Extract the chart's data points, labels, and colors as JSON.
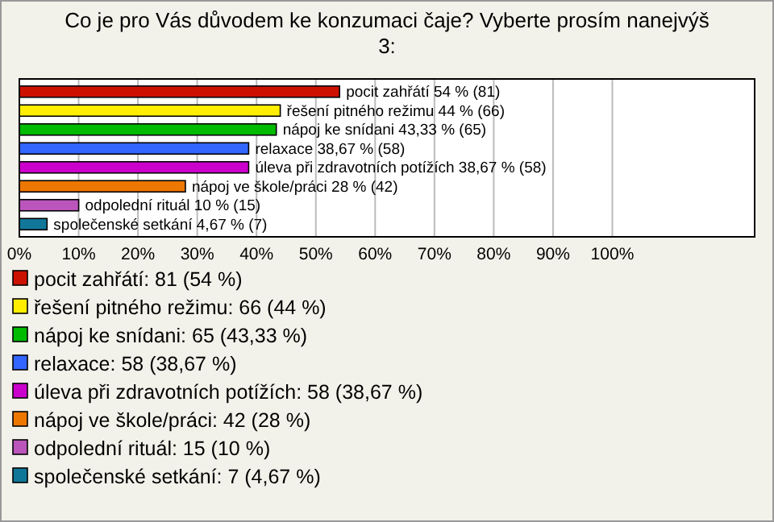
{
  "chart_data": {
    "type": "bar",
    "orientation": "horizontal",
    "title": "Co je pro Vás důvodem ke konzumaci čaje? Vyberte prosím nanejvýš 3:",
    "categories": [
      null,
      null,
      null,
      null,
      null,
      null,
      null,
      null
    ],
    "series": [
      {
        "name": "pocit zahřátí: 81 (54 %)",
        "color": "#cc1100",
        "values": [
          54,
          null,
          null,
          null,
          null,
          null,
          null,
          null
        ],
        "value_labels": [
          "pocit zahřátí 54 % (81)",
          null,
          null,
          null,
          null,
          null,
          null,
          null
        ]
      },
      {
        "name": "řešení pitného režimu: 66 (44 %)",
        "color": "#ffee00",
        "values": [
          null,
          44,
          null,
          null,
          null,
          null,
          null,
          null
        ],
        "value_labels": [
          null,
          "řešení pitného režimu 44 % (66)",
          null,
          null,
          null,
          null,
          null,
          null
        ]
      },
      {
        "name": "nápoj ke snídani: 65 (43,33 %)",
        "color": "#00bb00",
        "values": [
          null,
          null,
          43.33,
          null,
          null,
          null,
          null,
          null
        ],
        "value_labels": [
          null,
          null,
          "nápoj ke snídani 43,33 % (65)",
          null,
          null,
          null,
          null,
          null
        ]
      },
      {
        "name": "relaxace: 58 (38,67 %)",
        "color": "#3366ff",
        "values": [
          null,
          null,
          null,
          38.67,
          null,
          null,
          null,
          null
        ],
        "value_labels": [
          null,
          null,
          null,
          "relaxace 38,67 % (58)",
          null,
          null,
          null,
          null
        ]
      },
      {
        "name": "úleva při zdravotních potížích: 58 (38,67 %)",
        "color": "#cc00cc",
        "values": [
          null,
          null,
          null,
          null,
          38.67,
          null,
          null,
          null
        ],
        "value_labels": [
          null,
          null,
          null,
          null,
          "úleva při zdravotních potížích 38,67 % (58)",
          null,
          null,
          null
        ]
      },
      {
        "name": "nápoj ve škole/práci: 42 (28 %)",
        "color": "#ee7700",
        "values": [
          null,
          null,
          null,
          null,
          null,
          28,
          null,
          null
        ],
        "value_labels": [
          null,
          null,
          null,
          null,
          null,
          "nápoj ve škole/práci 28 % (42)",
          null,
          null
        ]
      },
      {
        "name": "odpolední rituál: 15 (10 %)",
        "color": "#bb55bb",
        "values": [
          null,
          null,
          null,
          null,
          null,
          null,
          10,
          null
        ],
        "value_labels": [
          null,
          null,
          null,
          null,
          null,
          null,
          "odpolední rituál 10 % (15)",
          null
        ]
      },
      {
        "name": "společenské setkání: 7 (4,67 %)",
        "color": "#117799",
        "values": [
          null,
          null,
          null,
          null,
          null,
          null,
          null,
          4.67
        ],
        "value_labels": [
          null,
          null,
          null,
          null,
          null,
          null,
          null,
          "společenské setkání 4,67 % (7)"
        ]
      }
    ],
    "xlim": [
      0,
      124
    ],
    "xticks": [
      {
        "value": 0,
        "label": "0%"
      },
      {
        "value": 10,
        "label": "10%"
      },
      {
        "value": 20,
        "label": "20%"
      },
      {
        "value": 30,
        "label": "30%"
      },
      {
        "value": 40,
        "label": "40%"
      },
      {
        "value": 50,
        "label": "50%"
      },
      {
        "value": 60,
        "label": "60%"
      },
      {
        "value": 70,
        "label": "70%"
      },
      {
        "value": 80,
        "label": "80%"
      },
      {
        "value": 90,
        "label": "90%"
      },
      {
        "value": 100,
        "label": "100%"
      }
    ],
    "grid": "x",
    "tick_labels": "x",
    "legend": "bottom"
  }
}
